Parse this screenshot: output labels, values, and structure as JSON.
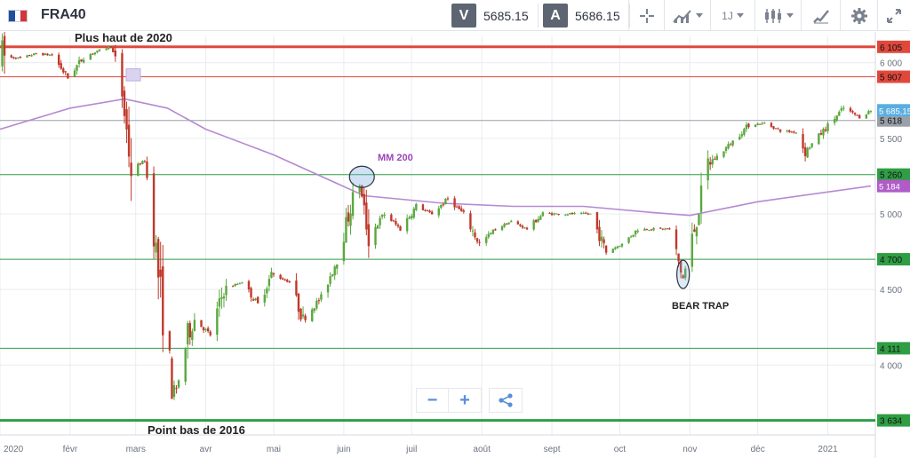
{
  "toolbar": {
    "symbol": "FRA40",
    "bid_label": "V",
    "bid_value": "5685.15",
    "ask_label": "A",
    "ask_value": "5686.15",
    "timeframe": "1J",
    "flag_colors": [
      "#1f4fa0",
      "#ffffff",
      "#d8323d"
    ],
    "icons": [
      "crosshair-icon",
      "chart-type-icon",
      "candlestick-icon",
      "drawing-pen-icon",
      "settings-gear-icon",
      "fullscreen-icon"
    ]
  },
  "zoom_controls": {
    "minus": "−",
    "plus": "+",
    "share_icon": "share-icon"
  },
  "chart_data": {
    "type": "candlestick",
    "x_range": [
      "2020-01-01",
      "2021-01-22"
    ],
    "y_range": [
      3620,
      6180
    ],
    "y_ticks": [
      {
        "value": 6000,
        "label": "6 000"
      },
      {
        "value": 5500,
        "label": "5 500"
      },
      {
        "value": 5000,
        "label": "5 000"
      },
      {
        "value": 4500,
        "label": "4 500"
      },
      {
        "value": 4000,
        "label": "4 000"
      }
    ],
    "x_ticks": [
      {
        "date": "2020-01-01",
        "label": "2020"
      },
      {
        "date": "2020-02-01",
        "label": "févr"
      },
      {
        "date": "2020-03-01",
        "label": "mars"
      },
      {
        "date": "2020-04-01",
        "label": "avr"
      },
      {
        "date": "2020-05-01",
        "label": "mai"
      },
      {
        "date": "2020-06-01",
        "label": "juin"
      },
      {
        "date": "2020-07-01",
        "label": "juil"
      },
      {
        "date": "2020-08-01",
        "label": "août"
      },
      {
        "date": "2020-09-01",
        "label": "sept"
      },
      {
        "date": "2020-10-01",
        "label": "oct"
      },
      {
        "date": "2020-11-01",
        "label": "nov"
      },
      {
        "date": "2020-12-01",
        "label": "déc"
      },
      {
        "date": "2021-01-01",
        "label": "2021"
      }
    ],
    "price_path": [
      [
        "2020-01-02",
        6040
      ],
      [
        "2020-01-10",
        6030
      ],
      [
        "2020-01-17",
        6060
      ],
      [
        "2020-01-24",
        6050
      ],
      [
        "2020-01-31",
        5900
      ],
      [
        "2020-02-07",
        6040
      ],
      [
        "2020-02-14",
        6080
      ],
      [
        "2020-02-19",
        6110
      ],
      [
        "2020-02-21",
        6020
      ],
      [
        "2020-02-24",
        5790
      ],
      [
        "2020-02-28",
        5300
      ],
      [
        "2020-03-05",
        5350
      ],
      [
        "2020-03-09",
        4900
      ],
      [
        "2020-03-12",
        4450
      ],
      [
        "2020-03-16",
        4000
      ],
      [
        "2020-03-18",
        3750
      ],
      [
        "2020-03-24",
        4200
      ],
      [
        "2020-03-27",
        4300
      ],
      [
        "2020-04-03",
        4200
      ],
      [
        "2020-04-09",
        4500
      ],
      [
        "2020-04-17",
        4550
      ],
      [
        "2020-04-24",
        4400
      ],
      [
        "2020-04-30",
        4600
      ],
      [
        "2020-05-08",
        4550
      ],
      [
        "2020-05-14",
        4300
      ],
      [
        "2020-05-22",
        4450
      ],
      [
        "2020-05-29",
        4700
      ],
      [
        "2020-06-05",
        5100
      ],
      [
        "2020-06-08",
        5200
      ],
      [
        "2020-06-12",
        4850
      ],
      [
        "2020-06-19",
        5000
      ],
      [
        "2020-06-26",
        4900
      ],
      [
        "2020-07-03",
        5050
      ],
      [
        "2020-07-10",
        5000
      ],
      [
        "2020-07-17",
        5100
      ],
      [
        "2020-07-24",
        5000
      ],
      [
        "2020-07-31",
        4800
      ],
      [
        "2020-08-07",
        4900
      ],
      [
        "2020-08-14",
        4950
      ],
      [
        "2020-08-21",
        4900
      ],
      [
        "2020-08-28",
        5000
      ],
      [
        "2020-09-04",
        5000
      ],
      [
        "2020-09-11",
        5000
      ],
      [
        "2020-09-18",
        5000
      ],
      [
        "2020-09-25",
        4750
      ],
      [
        "2020-10-02",
        4800
      ],
      [
        "2020-10-09",
        4900
      ],
      [
        "2020-10-16",
        4900
      ],
      [
        "2020-10-23",
        4900
      ],
      [
        "2020-10-29",
        4570
      ],
      [
        "2020-11-03",
        4900
      ],
      [
        "2020-11-09",
        5330
      ],
      [
        "2020-11-13",
        5380
      ],
      [
        "2020-11-20",
        5480
      ],
      [
        "2020-11-27",
        5590
      ],
      [
        "2020-12-04",
        5600
      ],
      [
        "2020-12-11",
        5550
      ],
      [
        "2020-12-18",
        5540
      ],
      [
        "2020-12-22",
        5410
      ],
      [
        "2020-12-30",
        5550
      ],
      [
        "2021-01-08",
        5700
      ],
      [
        "2021-01-15",
        5640
      ],
      [
        "2021-01-20",
        5685
      ]
    ],
    "ma200_path": [
      [
        "2020-01-01",
        5560
      ],
      [
        "2020-02-01",
        5700
      ],
      [
        "2020-02-25",
        5760
      ],
      [
        "2020-03-15",
        5700
      ],
      [
        "2020-04-01",
        5560
      ],
      [
        "2020-05-01",
        5390
      ],
      [
        "2020-06-10",
        5120
      ],
      [
        "2020-07-15",
        5070
      ],
      [
        "2020-08-15",
        5050
      ],
      [
        "2020-09-15",
        5050
      ],
      [
        "2020-10-15",
        5010
      ],
      [
        "2020-11-01",
        4990
      ],
      [
        "2020-12-01",
        5080
      ],
      [
        "2021-01-20",
        5184
      ]
    ],
    "horizontal_levels": [
      {
        "value": 6105,
        "label": "6 105",
        "color": "#e0483c",
        "bold": true
      },
      {
        "value": 5907,
        "label": "5 907",
        "color": "#e0483c",
        "bold": false
      },
      {
        "value": 5618,
        "label": "5 618",
        "color": "#9aa0a8",
        "bold": false
      },
      {
        "value": 5260,
        "label": "5 260",
        "color": "#2f9e44",
        "bold": false
      },
      {
        "value": 4700,
        "label": "4 700",
        "color": "#2f9e44",
        "bold": false
      },
      {
        "value": 4111,
        "label": "4 111",
        "color": "#2f9e44",
        "bold": false
      },
      {
        "value": 3634,
        "label": "3 634",
        "color": "#2f9e44",
        "bold": true
      }
    ],
    "price_tags": [
      {
        "value": 5685.15,
        "label": "5 685,15",
        "color": "#5aaee0"
      },
      {
        "value": 5184,
        "label": "5 184",
        "color": "#b05cc8"
      }
    ],
    "annotations": [
      {
        "text": "Plus haut de 2020",
        "date": "2020-02-01",
        "value": 6140
      },
      {
        "text": "Point bas de 2016",
        "date": "2020-04-15",
        "value": 3592
      },
      {
        "text": "MM 200",
        "date": "2020-06-24",
        "value": 5440,
        "color": "#9b45b8"
      },
      {
        "text": "BEAR TRAP",
        "date": "2020-10-31",
        "value": 4340
      }
    ],
    "circles": [
      {
        "date": "2020-06-09",
        "value": 5245
      },
      {
        "date": "2020-10-29",
        "value": 4600
      }
    ],
    "colors": {
      "up": "#5aa83e",
      "down": "#c0392b",
      "ma": "#b58ad2",
      "grid": "#e9ecef"
    },
    "grid": true
  }
}
